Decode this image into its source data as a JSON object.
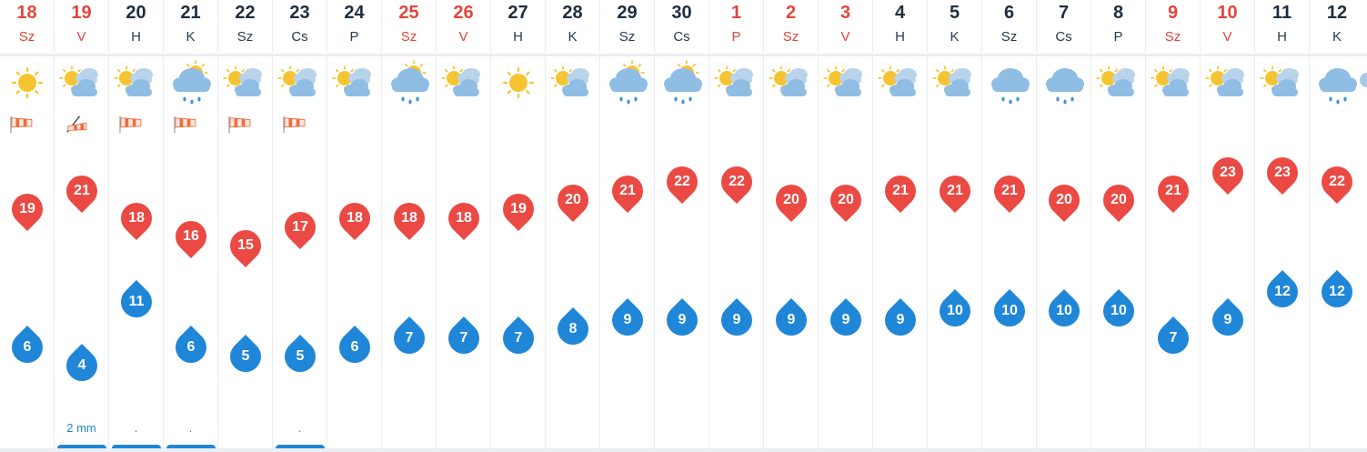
{
  "colors": {
    "weekend": "#e4453b",
    "temp_high": "#ea4a43",
    "temp_low": "#1f86d8",
    "precip": "#1f86d8",
    "divider": "#eceff2"
  },
  "days": [
    {
      "day": "18",
      "abbr": "Sz",
      "weekend": true,
      "icon": "sunny-icon",
      "wind": "windsock-icon",
      "high": "19",
      "low": "6",
      "precip": ""
    },
    {
      "day": "19",
      "abbr": "V",
      "weekend": true,
      "icon": "partly-cloudy-icon",
      "wind": "wind-direction-icon",
      "high": "21",
      "low": "4",
      "precip": "2 mm"
    },
    {
      "day": "20",
      "abbr": "H",
      "weekend": false,
      "icon": "partly-cloudy-icon",
      "wind": "windsock-icon",
      "high": "18",
      "low": "11",
      "precip": "."
    },
    {
      "day": "21",
      "abbr": "K",
      "weekend": false,
      "icon": "rain-sun-icon",
      "wind": "windsock-icon",
      "high": "16",
      "low": "6",
      "precip": "."
    },
    {
      "day": "22",
      "abbr": "Sz",
      "weekend": false,
      "icon": "partly-cloudy-icon",
      "wind": "windsock-icon",
      "high": "15",
      "low": "5",
      "precip": ""
    },
    {
      "day": "23",
      "abbr": "Cs",
      "weekend": false,
      "icon": "partly-cloudy-icon",
      "wind": "windsock-icon",
      "high": "17",
      "low": "5",
      "precip": "."
    },
    {
      "day": "24",
      "abbr": "P",
      "weekend": false,
      "icon": "partly-cloudy-icon",
      "wind": "",
      "high": "18",
      "low": "6",
      "precip": ""
    },
    {
      "day": "25",
      "abbr": "Sz",
      "weekend": true,
      "icon": "rain-sun-icon",
      "wind": "",
      "high": "18",
      "low": "7",
      "precip": ""
    },
    {
      "day": "26",
      "abbr": "V",
      "weekend": true,
      "icon": "partly-cloudy-icon",
      "wind": "",
      "high": "18",
      "low": "7",
      "precip": ""
    },
    {
      "day": "27",
      "abbr": "H",
      "weekend": false,
      "icon": "sunny-icon",
      "wind": "",
      "high": "19",
      "low": "7",
      "precip": ""
    },
    {
      "day": "28",
      "abbr": "K",
      "weekend": false,
      "icon": "partly-cloudy-icon",
      "wind": "",
      "high": "20",
      "low": "8",
      "precip": ""
    },
    {
      "day": "29",
      "abbr": "Sz",
      "weekend": false,
      "icon": "rain-sun-icon",
      "wind": "",
      "high": "21",
      "low": "9",
      "precip": ""
    },
    {
      "day": "30",
      "abbr": "Cs",
      "weekend": false,
      "icon": "rain-sun-icon",
      "wind": "",
      "high": "22",
      "low": "9",
      "precip": ""
    },
    {
      "day": "1",
      "abbr": "P",
      "weekend": true,
      "icon": "partly-cloudy-icon",
      "wind": "",
      "high": "22",
      "low": "9",
      "precip": ""
    },
    {
      "day": "2",
      "abbr": "Sz",
      "weekend": true,
      "icon": "partly-cloudy-icon",
      "wind": "",
      "high": "20",
      "low": "9",
      "precip": ""
    },
    {
      "day": "3",
      "abbr": "V",
      "weekend": true,
      "icon": "partly-cloudy-icon",
      "wind": "",
      "high": "20",
      "low": "9",
      "precip": ""
    },
    {
      "day": "4",
      "abbr": "H",
      "weekend": false,
      "icon": "partly-cloudy-icon",
      "wind": "",
      "high": "21",
      "low": "9",
      "precip": ""
    },
    {
      "day": "5",
      "abbr": "K",
      "weekend": false,
      "icon": "partly-cloudy-icon",
      "wind": "",
      "high": "21",
      "low": "10",
      "precip": ""
    },
    {
      "day": "6",
      "abbr": "Sz",
      "weekend": false,
      "icon": "rain-cloud-icon",
      "wind": "",
      "high": "21",
      "low": "10",
      "precip": ""
    },
    {
      "day": "7",
      "abbr": "Cs",
      "weekend": false,
      "icon": "rain-cloud-icon",
      "wind": "",
      "high": "20",
      "low": "10",
      "precip": ""
    },
    {
      "day": "8",
      "abbr": "P",
      "weekend": false,
      "icon": "partly-cloudy-icon",
      "wind": "",
      "high": "20",
      "low": "10",
      "precip": ""
    },
    {
      "day": "9",
      "abbr": "Sz",
      "weekend": true,
      "icon": "partly-cloudy-icon",
      "wind": "",
      "high": "21",
      "low": "7",
      "precip": ""
    },
    {
      "day": "10",
      "abbr": "V",
      "weekend": true,
      "icon": "partly-cloudy-icon",
      "wind": "",
      "high": "23",
      "low": "9",
      "precip": ""
    },
    {
      "day": "11",
      "abbr": "H",
      "weekend": false,
      "icon": "partly-cloudy-icon",
      "wind": "",
      "high": "23",
      "low": "12",
      "precip": ""
    },
    {
      "day": "12",
      "abbr": "K",
      "weekend": false,
      "icon": "rain-cloud-icon",
      "wind": "",
      "high": "22",
      "low": "12",
      "precip": ""
    }
  ],
  "precip_bars": [
    false,
    true,
    true,
    true,
    false,
    true,
    false,
    false,
    false,
    false,
    false,
    false,
    false,
    false,
    false,
    false,
    false,
    false,
    false,
    false,
    false,
    false,
    false,
    false,
    false
  ]
}
